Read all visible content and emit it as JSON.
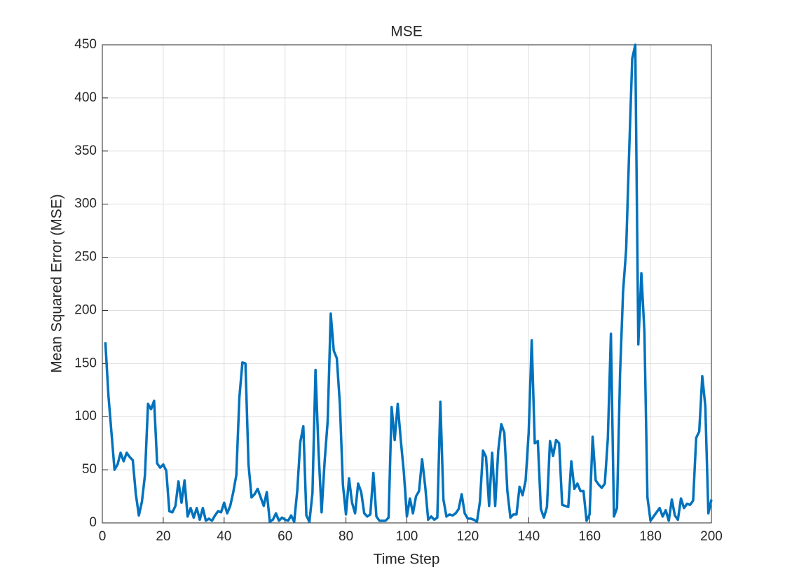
{
  "chart_data": {
    "type": "line",
    "title": "MSE",
    "xlabel": "Time Step",
    "ylabel": "Mean Squared Error (MSE)",
    "x": [
      1,
      2,
      3,
      4,
      5,
      6,
      7,
      8,
      9,
      10,
      11,
      12,
      13,
      14,
      15,
      16,
      17,
      18,
      19,
      20,
      21,
      22,
      23,
      24,
      25,
      26,
      27,
      28,
      29,
      30,
      31,
      32,
      33,
      34,
      35,
      36,
      37,
      38,
      39,
      40,
      41,
      42,
      43,
      44,
      45,
      46,
      47,
      48,
      49,
      50,
      51,
      52,
      53,
      54,
      55,
      56,
      57,
      58,
      59,
      60,
      61,
      62,
      63,
      64,
      65,
      66,
      67,
      68,
      69,
      70,
      71,
      72,
      73,
      74,
      75,
      76,
      77,
      78,
      79,
      80,
      81,
      82,
      83,
      84,
      85,
      86,
      87,
      88,
      89,
      90,
      91,
      92,
      93,
      94,
      95,
      96,
      97,
      98,
      99,
      100,
      101,
      102,
      103,
      104,
      105,
      106,
      107,
      108,
      109,
      110,
      111,
      112,
      113,
      114,
      115,
      116,
      117,
      118,
      119,
      120,
      121,
      122,
      123,
      124,
      125,
      126,
      127,
      128,
      129,
      130,
      131,
      132,
      133,
      134,
      135,
      136,
      137,
      138,
      139,
      140,
      141,
      142,
      143,
      144,
      145,
      146,
      147,
      148,
      149,
      150,
      151,
      152,
      153,
      154,
      155,
      156,
      157,
      158,
      159,
      160,
      161,
      162,
      163,
      164,
      165,
      166,
      167,
      168,
      169,
      170,
      171,
      172,
      173,
      174,
      175,
      176,
      177,
      178,
      179,
      180,
      181,
      182,
      183,
      184,
      185,
      186,
      187,
      188,
      189,
      190,
      191,
      192,
      193,
      194,
      195,
      196,
      197,
      198,
      199,
      200
    ],
    "series": [
      {
        "name": "MSE",
        "color": "#0072bd",
        "values": [
          170,
          120,
          85,
          50,
          55,
          66,
          58,
          66,
          62,
          59,
          27,
          7,
          20,
          45,
          112,
          107,
          115,
          56,
          52,
          55,
          49,
          11,
          10,
          16,
          39,
          19,
          40,
          6,
          14,
          5,
          14,
          3,
          14,
          2,
          4,
          2,
          7,
          11,
          10,
          19,
          9,
          16,
          29,
          45,
          118,
          151,
          150,
          55,
          24,
          27,
          32,
          24,
          16,
          29,
          1,
          3,
          9,
          2,
          5,
          3,
          2,
          7,
          1,
          30,
          76,
          91,
          7,
          1,
          28,
          144,
          67,
          10,
          58,
          96,
          197,
          162,
          155,
          112,
          36,
          8,
          42,
          19,
          9,
          37,
          29,
          9,
          6,
          8,
          47,
          6,
          2,
          2,
          2,
          5,
          109,
          78,
          112,
          78,
          48,
          6,
          23,
          9,
          25,
          30,
          60,
          35,
          3,
          6,
          3,
          5,
          114,
          22,
          6,
          8,
          7,
          9,
          13,
          27,
          9,
          4,
          4,
          3,
          1,
          20,
          68,
          62,
          16,
          66,
          16,
          68,
          93,
          85,
          30,
          5,
          8,
          8,
          34,
          26,
          40,
          85,
          172,
          75,
          77,
          13,
          5,
          15,
          77,
          63,
          78,
          75,
          17,
          16,
          15,
          58,
          32,
          37,
          30,
          30,
          2,
          8,
          81,
          40,
          36,
          33,
          37,
          80,
          178,
          6,
          14,
          140,
          218,
          257,
          350,
          437,
          450,
          168,
          235,
          180,
          24,
          2,
          6,
          10,
          14,
          6,
          12,
          2,
          22,
          7,
          3,
          23,
          14,
          18,
          17,
          21,
          80,
          86,
          138,
          110,
          9,
          22
        ]
      }
    ],
    "xlim": [
      0,
      200
    ],
    "xticks": [
      0,
      20,
      40,
      60,
      80,
      100,
      120,
      140,
      160,
      180,
      200
    ],
    "ylim": [
      0,
      450
    ],
    "yticks": [
      0,
      50,
      100,
      150,
      200,
      250,
      300,
      350,
      400,
      450
    ],
    "grid": true
  }
}
